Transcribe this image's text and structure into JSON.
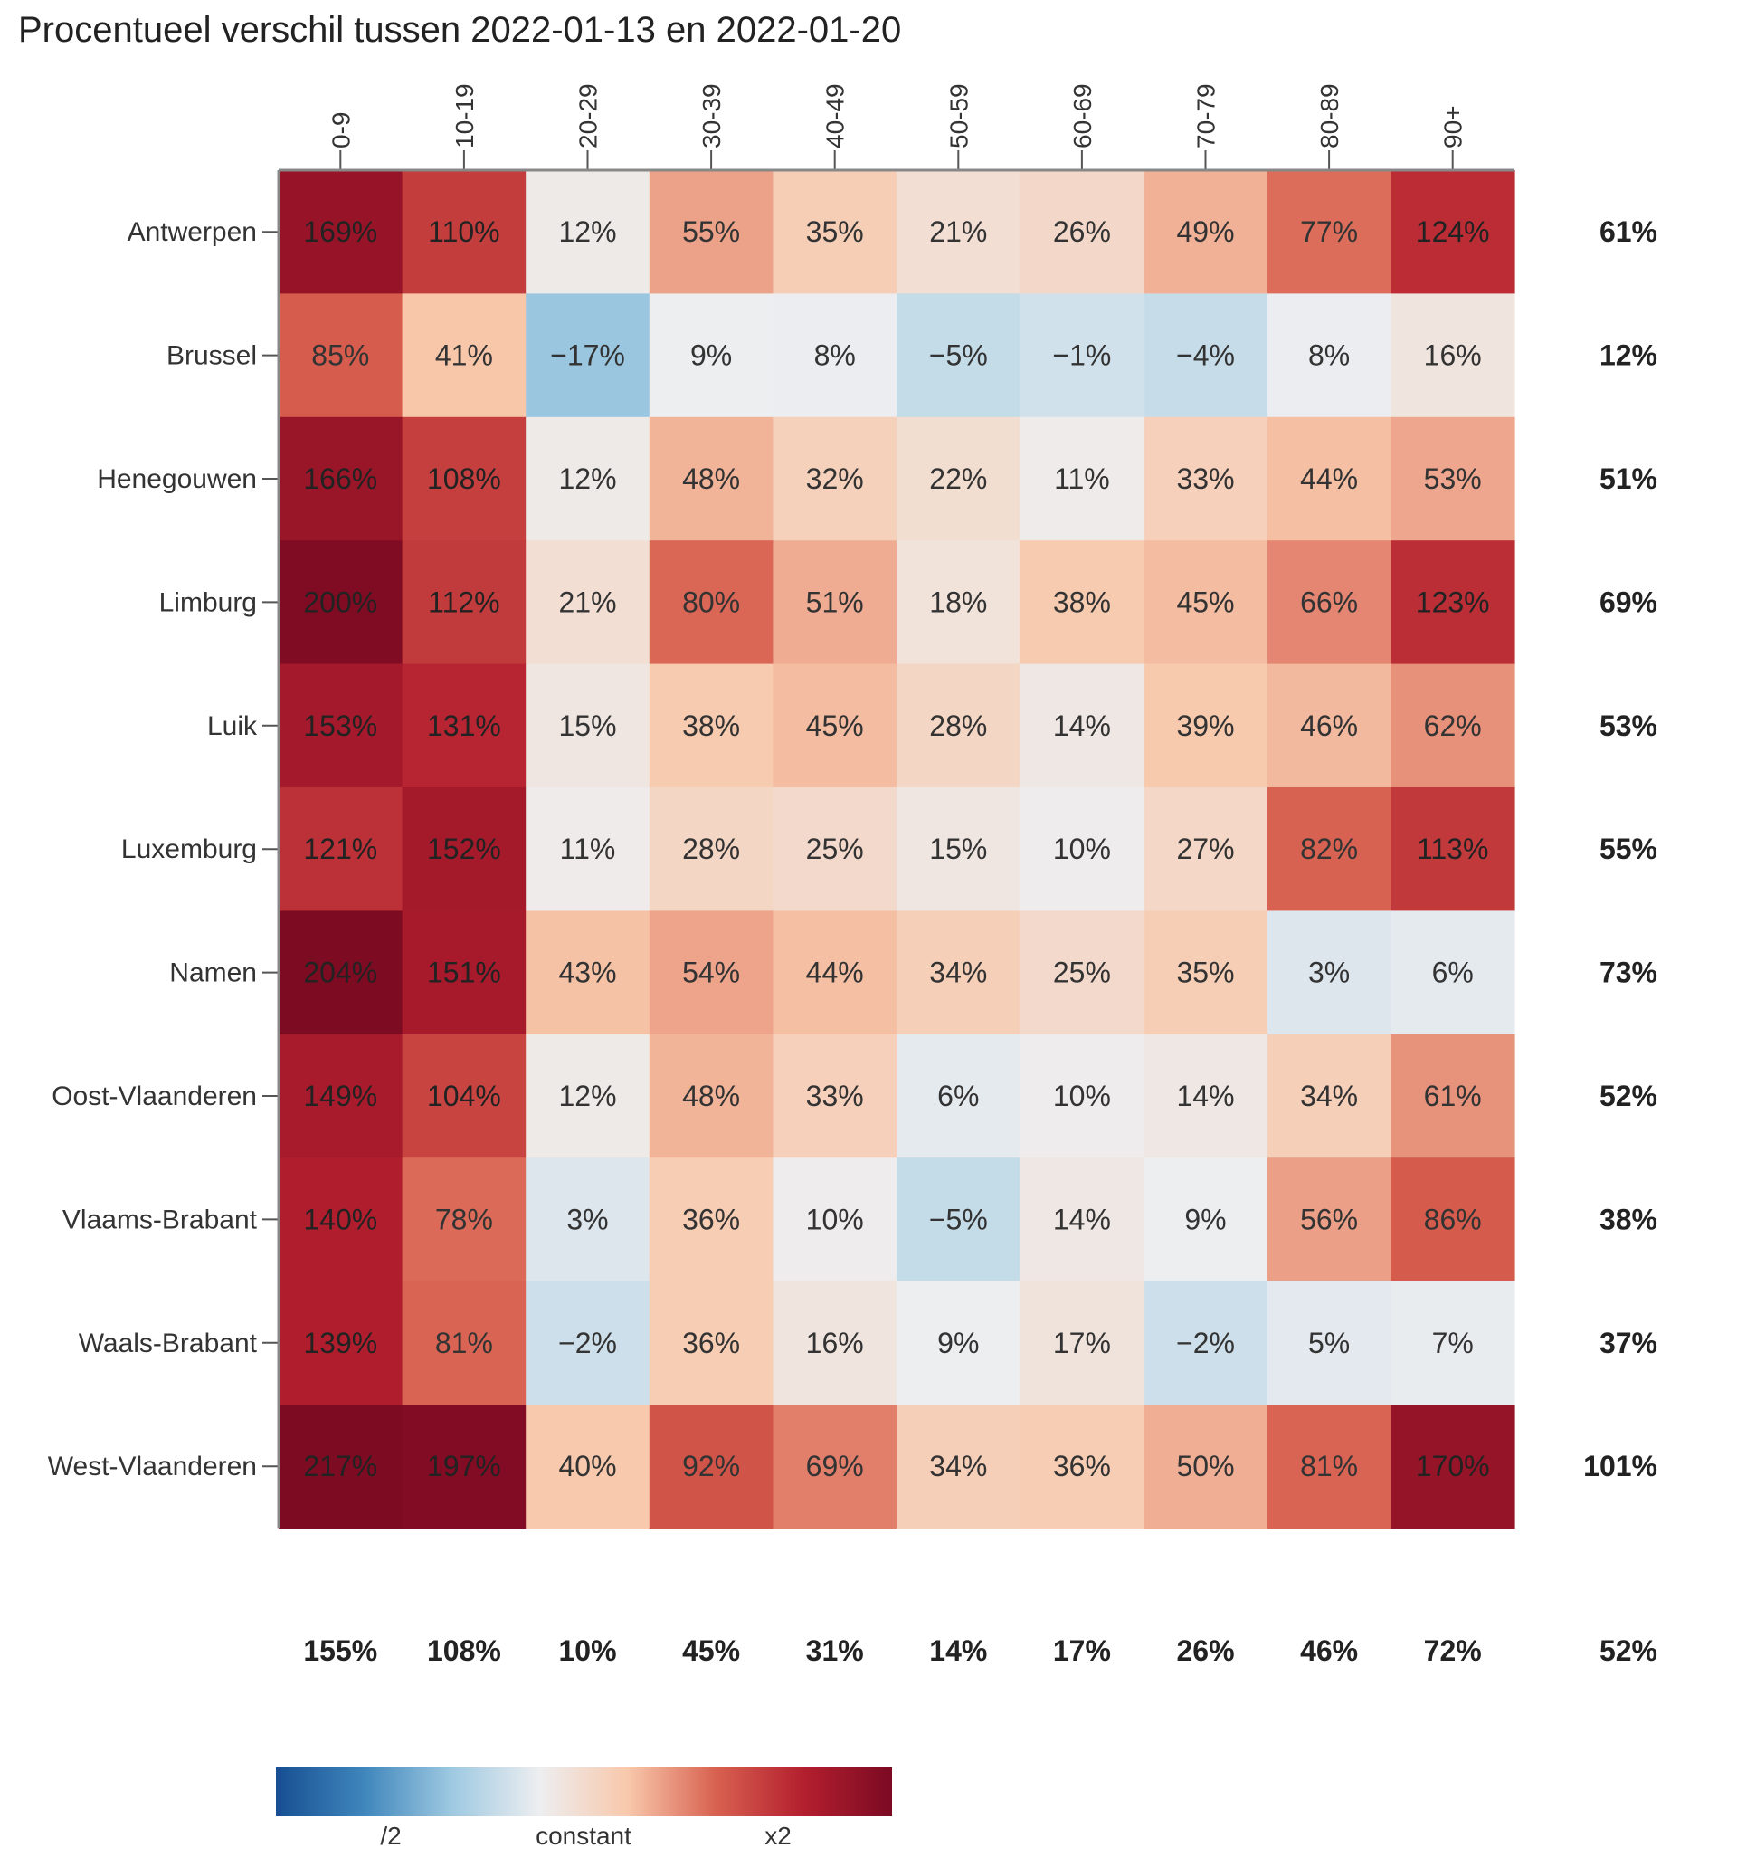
{
  "chart_data": {
    "type": "heatmap",
    "title": "Procentueel verschil tussen 2022-01-13 en 2022-01-20",
    "columns": [
      "0-9",
      "10-19",
      "20-29",
      "30-39",
      "40-49",
      "50-59",
      "60-69",
      "70-79",
      "80-89",
      "90+"
    ],
    "rows": [
      "Antwerpen",
      "Brussel",
      "Henegouwen",
      "Limburg",
      "Luik",
      "Luxemburg",
      "Namen",
      "Oost-Vlaanderen",
      "Vlaams-Brabant",
      "Waals-Brabant",
      "West-Vlaanderen"
    ],
    "values": [
      [
        169,
        110,
        12,
        55,
        35,
        21,
        26,
        49,
        77,
        124
      ],
      [
        85,
        41,
        -17,
        9,
        8,
        -5,
        -1,
        -4,
        8,
        16
      ],
      [
        166,
        108,
        12,
        48,
        32,
        22,
        11,
        33,
        44,
        53
      ],
      [
        200,
        112,
        21,
        80,
        51,
        18,
        38,
        45,
        66,
        123
      ],
      [
        153,
        131,
        15,
        38,
        45,
        28,
        14,
        39,
        46,
        62
      ],
      [
        121,
        152,
        11,
        28,
        25,
        15,
        10,
        27,
        82,
        113
      ],
      [
        204,
        151,
        43,
        54,
        44,
        34,
        25,
        35,
        3,
        6
      ],
      [
        149,
        104,
        12,
        48,
        33,
        6,
        10,
        14,
        34,
        61
      ],
      [
        140,
        78,
        3,
        36,
        10,
        -5,
        14,
        9,
        56,
        86
      ],
      [
        139,
        81,
        -2,
        36,
        16,
        9,
        17,
        -2,
        5,
        7
      ],
      [
        217,
        197,
        40,
        92,
        69,
        34,
        36,
        50,
        81,
        170
      ]
    ],
    "row_totals": [
      61,
      12,
      51,
      69,
      53,
      55,
      73,
      52,
      38,
      37,
      101
    ],
    "column_totals": [
      155,
      108,
      10,
      45,
      31,
      14,
      17,
      26,
      46,
      72
    ],
    "grand_total": 52,
    "value_suffix": "%",
    "color_scale": {
      "type": "diverging",
      "colors": [
        "#174f92",
        "#3f86bc",
        "#9ec9e1",
        "#edeef0",
        "#f8c8ab",
        "#d86150",
        "#b31f2e",
        "#7b0a22"
      ],
      "labels": [
        "/2",
        "constant",
        "x2"
      ]
    }
  }
}
